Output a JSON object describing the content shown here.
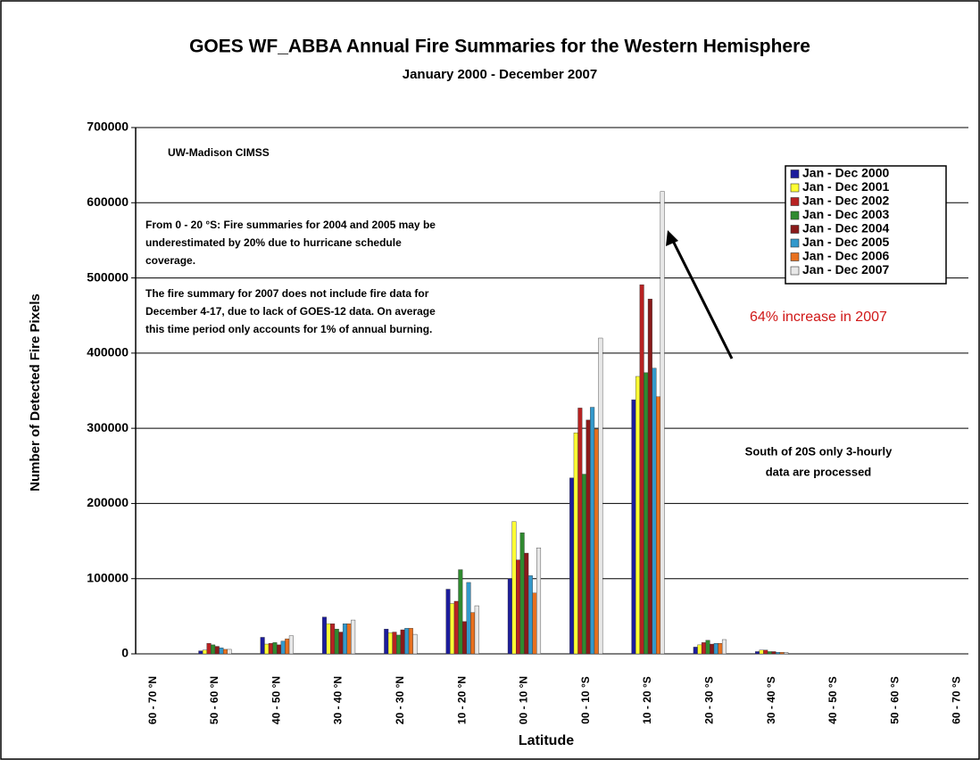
{
  "chart_data": {
    "type": "bar",
    "title": "GOES WF_ABBA Annual Fire Summaries for the Western Hemisphere",
    "subtitle": "January 2000 - December 2007",
    "x_label": "Latitude",
    "y_label": "Number of Detected Fire Pixels",
    "categories": [
      "60 - 70 °N",
      "50 - 60 °N",
      "40 - 50 °N",
      "30 - 40 °N",
      "20 - 30 °N",
      "10 - 20 °N",
      "00 - 10 °N",
      "00 - 10 °S",
      "10 - 20 °S",
      "20 - 30 °S",
      "30 - 40 °S",
      "40 - 50 °S",
      "50 - 60 °S",
      "60 - 70 °S"
    ],
    "series": [
      {
        "name": "Jan - Dec 2000",
        "color": "#1c1c9c",
        "values": [
          0,
          4000,
          22000,
          49000,
          33000,
          86000,
          100000,
          234000,
          338000,
          9000,
          3000,
          0,
          0,
          0
        ]
      },
      {
        "name": "Jan - Dec 2001",
        "color": "#ffff33",
        "values": [
          0,
          5000,
          13000,
          40000,
          28000,
          67000,
          176000,
          294000,
          369000,
          12000,
          5000,
          0,
          0,
          0
        ]
      },
      {
        "name": "Jan - Dec 2002",
        "color": "#b82222",
        "values": [
          0,
          14000,
          14000,
          40000,
          29000,
          70000,
          125000,
          327000,
          491000,
          15000,
          5000,
          0,
          0,
          0
        ]
      },
      {
        "name": "Jan - Dec 2003",
        "color": "#2f8a2f",
        "values": [
          0,
          12000,
          15000,
          33000,
          25000,
          112000,
          161000,
          239000,
          374000,
          18000,
          3000,
          0,
          0,
          0
        ]
      },
      {
        "name": "Jan - Dec 2004",
        "color": "#8a1a1a",
        "values": [
          0,
          10000,
          12000,
          29000,
          32000,
          43000,
          134000,
          311000,
          472000,
          13000,
          3000,
          0,
          0,
          0
        ]
      },
      {
        "name": "Jan - Dec 2005",
        "color": "#3399cc",
        "values": [
          0,
          8000,
          17000,
          40000,
          34000,
          95000,
          104000,
          328000,
          380000,
          14000,
          2000,
          0,
          0,
          0
        ]
      },
      {
        "name": "Jan - Dec 2006",
        "color": "#e8701e",
        "values": [
          0,
          6000,
          20000,
          40000,
          34000,
          55000,
          81000,
          299000,
          342000,
          14000,
          2000,
          0,
          0,
          0
        ]
      },
      {
        "name": "Jan - Dec 2007",
        "color": "#e8e8e8",
        "values": [
          0,
          6000,
          24000,
          45000,
          26000,
          64000,
          141000,
          420000,
          615000,
          19000,
          2000,
          0,
          0,
          0
        ]
      }
    ],
    "ylim": [
      0,
      700000
    ],
    "yticks": [
      0,
      100000,
      200000,
      300000,
      400000,
      500000,
      600000,
      700000
    ],
    "grid": true,
    "legend": "top-right",
    "annotations": {
      "source": "UW-Madison CIMSS",
      "note1": [
        "From 0 - 20 °S:  Fire summaries for 2004 and 2005 may be",
        "underestimated by 20% due to hurricane schedule",
        "coverage."
      ],
      "note2": [
        "The fire summary for 2007 does not include fire data for",
        "December 4-17, due to lack of GOES-12 data.  On average",
        "this time period only accounts for 1% of annual burning."
      ],
      "increase": "64% increase in 2007",
      "south": [
        "South of 20S only 3-hourly",
        "data are processed"
      ]
    }
  }
}
